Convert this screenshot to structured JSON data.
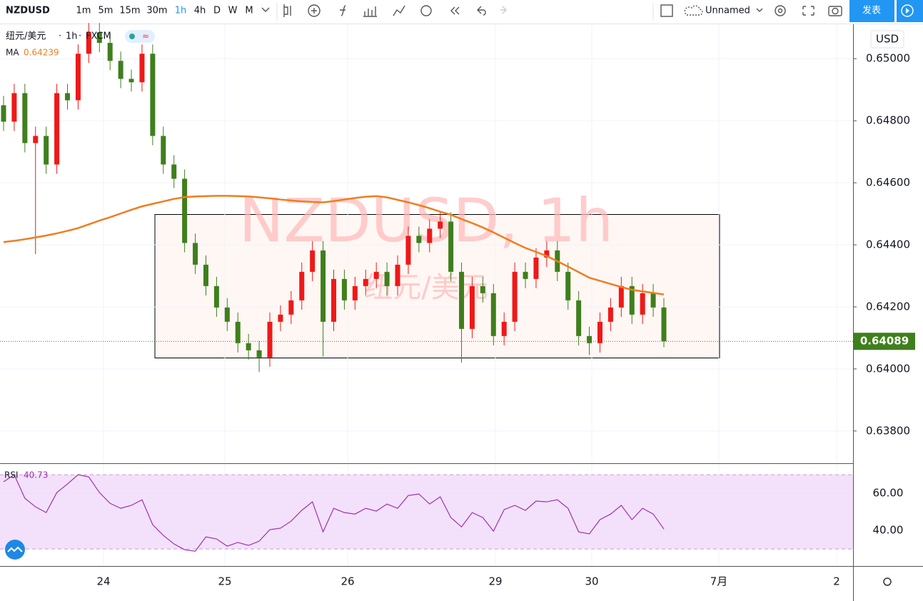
{
  "toolbar": {
    "symbol": "NZDUSD",
    "intervals": [
      "1m",
      "5m",
      "15m",
      "30m",
      "1h",
      "4h",
      "D",
      "W",
      "M"
    ],
    "active_interval": "1h",
    "layout_name": "Unnamed",
    "publish": "发表"
  },
  "legend": {
    "symbol_name": "纽元/美元",
    "interval": "1h",
    "source": "FXCM",
    "ma_label": "MA",
    "ma_value": 0.64239
  },
  "watermark": {
    "title": "NZDUSD, 1h",
    "subtitle": "纽元/美元"
  },
  "chart": {
    "type": "candlestick",
    "currency": "USD",
    "last_price": 0.64089,
    "ylim": [
      0.63696,
      0.65111
    ],
    "yticks": [
      {
        "value": 0.65,
        "label": "0.65000"
      },
      {
        "value": 0.648,
        "label": "0.64800"
      },
      {
        "value": 0.646,
        "label": "0.64600"
      },
      {
        "value": 0.644,
        "label": "0.64400"
      },
      {
        "value": 0.642,
        "label": "0.64200"
      },
      {
        "value": 0.64,
        "label": "0.64000"
      },
      {
        "value": 0.638,
        "label": "0.63800"
      }
    ],
    "x_labels": [
      "24",
      "25",
      "26",
      "29",
      "30",
      "7月",
      "2"
    ],
    "open": [
      0.6485,
      0.64797,
      0.64889,
      0.64728,
      0.64751,
      0.64659,
      0.64889,
      0.64866,
      0.65016,
      0.65085,
      0.65051,
      0.64993,
      0.64935,
      0.64924,
      0.65016,
      0.64751,
      0.64659,
      0.64613,
      0.64406,
      0.64336,
      0.64267,
      0.64198,
      0.64152,
      0.64083,
      0.6406,
      0.64037,
      0.64152,
      0.64175,
      0.64221,
      0.64313,
      0.64382,
      0.64152,
      0.6429,
      0.64221,
      0.64267,
      0.6429,
      0.64313,
      0.64267,
      0.64336,
      0.64429,
      0.64406,
      0.64452,
      0.64475,
      0.64313,
      0.64129,
      0.64267,
      0.64244,
      0.64106,
      0.64152,
      0.64313,
      0.6429,
      0.64359,
      0.64382,
      0.64313,
      0.64221,
      0.64106,
      0.64083,
      0.64152,
      0.64198,
      0.64267,
      0.64175,
      0.64244,
      0.64198
    ],
    "high": [
      0.6488,
      0.64919,
      0.64919,
      0.64781,
      0.64781,
      0.64919,
      0.64919,
      0.65046,
      0.65115,
      0.65115,
      0.65081,
      0.65023,
      0.64965,
      0.65046,
      0.65046,
      0.64781,
      0.64689,
      0.64643,
      0.64436,
      0.64366,
      0.64297,
      0.64228,
      0.64182,
      0.64113,
      0.6409,
      0.64182,
      0.64205,
      0.64251,
      0.64343,
      0.64412,
      0.64412,
      0.6432,
      0.6432,
      0.64297,
      0.6432,
      0.64343,
      0.64343,
      0.64366,
      0.64459,
      0.64459,
      0.64482,
      0.64505,
      0.64505,
      0.64343,
      0.64297,
      0.64297,
      0.64274,
      0.64182,
      0.64343,
      0.64343,
      0.64389,
      0.64412,
      0.64412,
      0.64343,
      0.64251,
      0.64136,
      0.64182,
      0.64228,
      0.64297,
      0.64297,
      0.64274,
      0.64274,
      0.64228
    ],
    "low": [
      0.64767,
      0.64767,
      0.64698,
      0.6437,
      0.64629,
      0.64629,
      0.64836,
      0.64836,
      0.64986,
      0.65021,
      0.64963,
      0.64905,
      0.64894,
      0.64894,
      0.64721,
      0.64629,
      0.64583,
      0.64376,
      0.64306,
      0.64237,
      0.64168,
      0.64122,
      0.64053,
      0.6403,
      0.6399,
      0.64007,
      0.64122,
      0.64145,
      0.64191,
      0.64283,
      0.6404,
      0.64122,
      0.64191,
      0.64191,
      0.64237,
      0.6426,
      0.64237,
      0.64237,
      0.64306,
      0.64376,
      0.64376,
      0.64422,
      0.64283,
      0.6402,
      0.64099,
      0.64214,
      0.64076,
      0.64076,
      0.64122,
      0.6426,
      0.6426,
      0.64329,
      0.64283,
      0.64191,
      0.64076,
      0.64045,
      0.64053,
      0.64122,
      0.64168,
      0.64145,
      0.64145,
      0.64168,
      0.6407
    ],
    "close": [
      0.64797,
      0.64889,
      0.64728,
      0.64751,
      0.64659,
      0.64889,
      0.64866,
      0.65016,
      0.65085,
      0.65051,
      0.64993,
      0.64935,
      0.64924,
      0.65016,
      0.64751,
      0.64659,
      0.64613,
      0.64406,
      0.64336,
      0.64267,
      0.64198,
      0.64152,
      0.64083,
      0.6406,
      0.64037,
      0.64152,
      0.64175,
      0.64221,
      0.64313,
      0.64382,
      0.64152,
      0.6429,
      0.64221,
      0.64267,
      0.6429,
      0.64313,
      0.64267,
      0.64336,
      0.64429,
      0.64406,
      0.64452,
      0.64475,
      0.64313,
      0.64129,
      0.64267,
      0.64244,
      0.64106,
      0.64152,
      0.64313,
      0.6429,
      0.64359,
      0.64382,
      0.64313,
      0.64221,
      0.64106,
      0.64083,
      0.64152,
      0.64198,
      0.64267,
      0.64175,
      0.64244,
      0.64198,
      0.64089
    ],
    "ma": [
      0.64409,
      0.64413,
      0.64418,
      0.64424,
      0.6443,
      0.64437,
      0.64445,
      0.64454,
      0.64466,
      0.64478,
      0.64489,
      0.64501,
      0.64513,
      0.64524,
      0.64532,
      0.6454,
      0.64548,
      0.64554,
      0.64556,
      0.64557,
      0.64558,
      0.64558,
      0.64557,
      0.64556,
      0.64553,
      0.6455,
      0.64546,
      0.64543,
      0.6454,
      0.64538,
      0.64537,
      0.64541,
      0.64546,
      0.64551,
      0.64555,
      0.64557,
      0.64553,
      0.64545,
      0.64537,
      0.64528,
      0.64518,
      0.64507,
      0.64497,
      0.64483,
      0.6447,
      0.64456,
      0.6444,
      0.64423,
      0.64406,
      0.6439,
      0.64377,
      0.64364,
      0.64347,
      0.6433,
      0.64312,
      0.64294,
      0.64284,
      0.64274,
      0.64264,
      0.64255,
      0.6425,
      0.64245,
      0.6424
    ],
    "up_color": "#f01818",
    "down_color": "#3f7f1c",
    "ma_color": "#f07d1e"
  },
  "rsi": {
    "label": "RSI",
    "value": 40.73,
    "ylim": [
      20.8,
      75.8
    ],
    "yticks": [
      {
        "value": 60,
        "label": "60.00"
      },
      {
        "value": 40,
        "label": "40.00"
      }
    ],
    "bands": [
      70,
      30
    ],
    "color": "#a030b0",
    "values": [
      66.2,
      70.0,
      57.3,
      52.7,
      49.6,
      60.4,
      65.0,
      70.0,
      68.8,
      60.4,
      54.6,
      51.9,
      53.5,
      56.5,
      43.1,
      37.3,
      32.7,
      29.6,
      28.8,
      36.5,
      35.4,
      31.5,
      33.5,
      31.9,
      34.2,
      40.4,
      41.2,
      45.0,
      50.8,
      55.4,
      39.2,
      51.9,
      49.6,
      48.8,
      51.9,
      50.4,
      54.2,
      51.9,
      58.8,
      59.6,
      54.2,
      58.1,
      46.9,
      41.9,
      49.6,
      46.9,
      39.6,
      51.2,
      53.5,
      50.8,
      55.8,
      55.4,
      56.5,
      51.9,
      39.2,
      38.1,
      45.8,
      48.8,
      53.5,
      45.8,
      51.9,
      48.8,
      40.73
    ]
  }
}
